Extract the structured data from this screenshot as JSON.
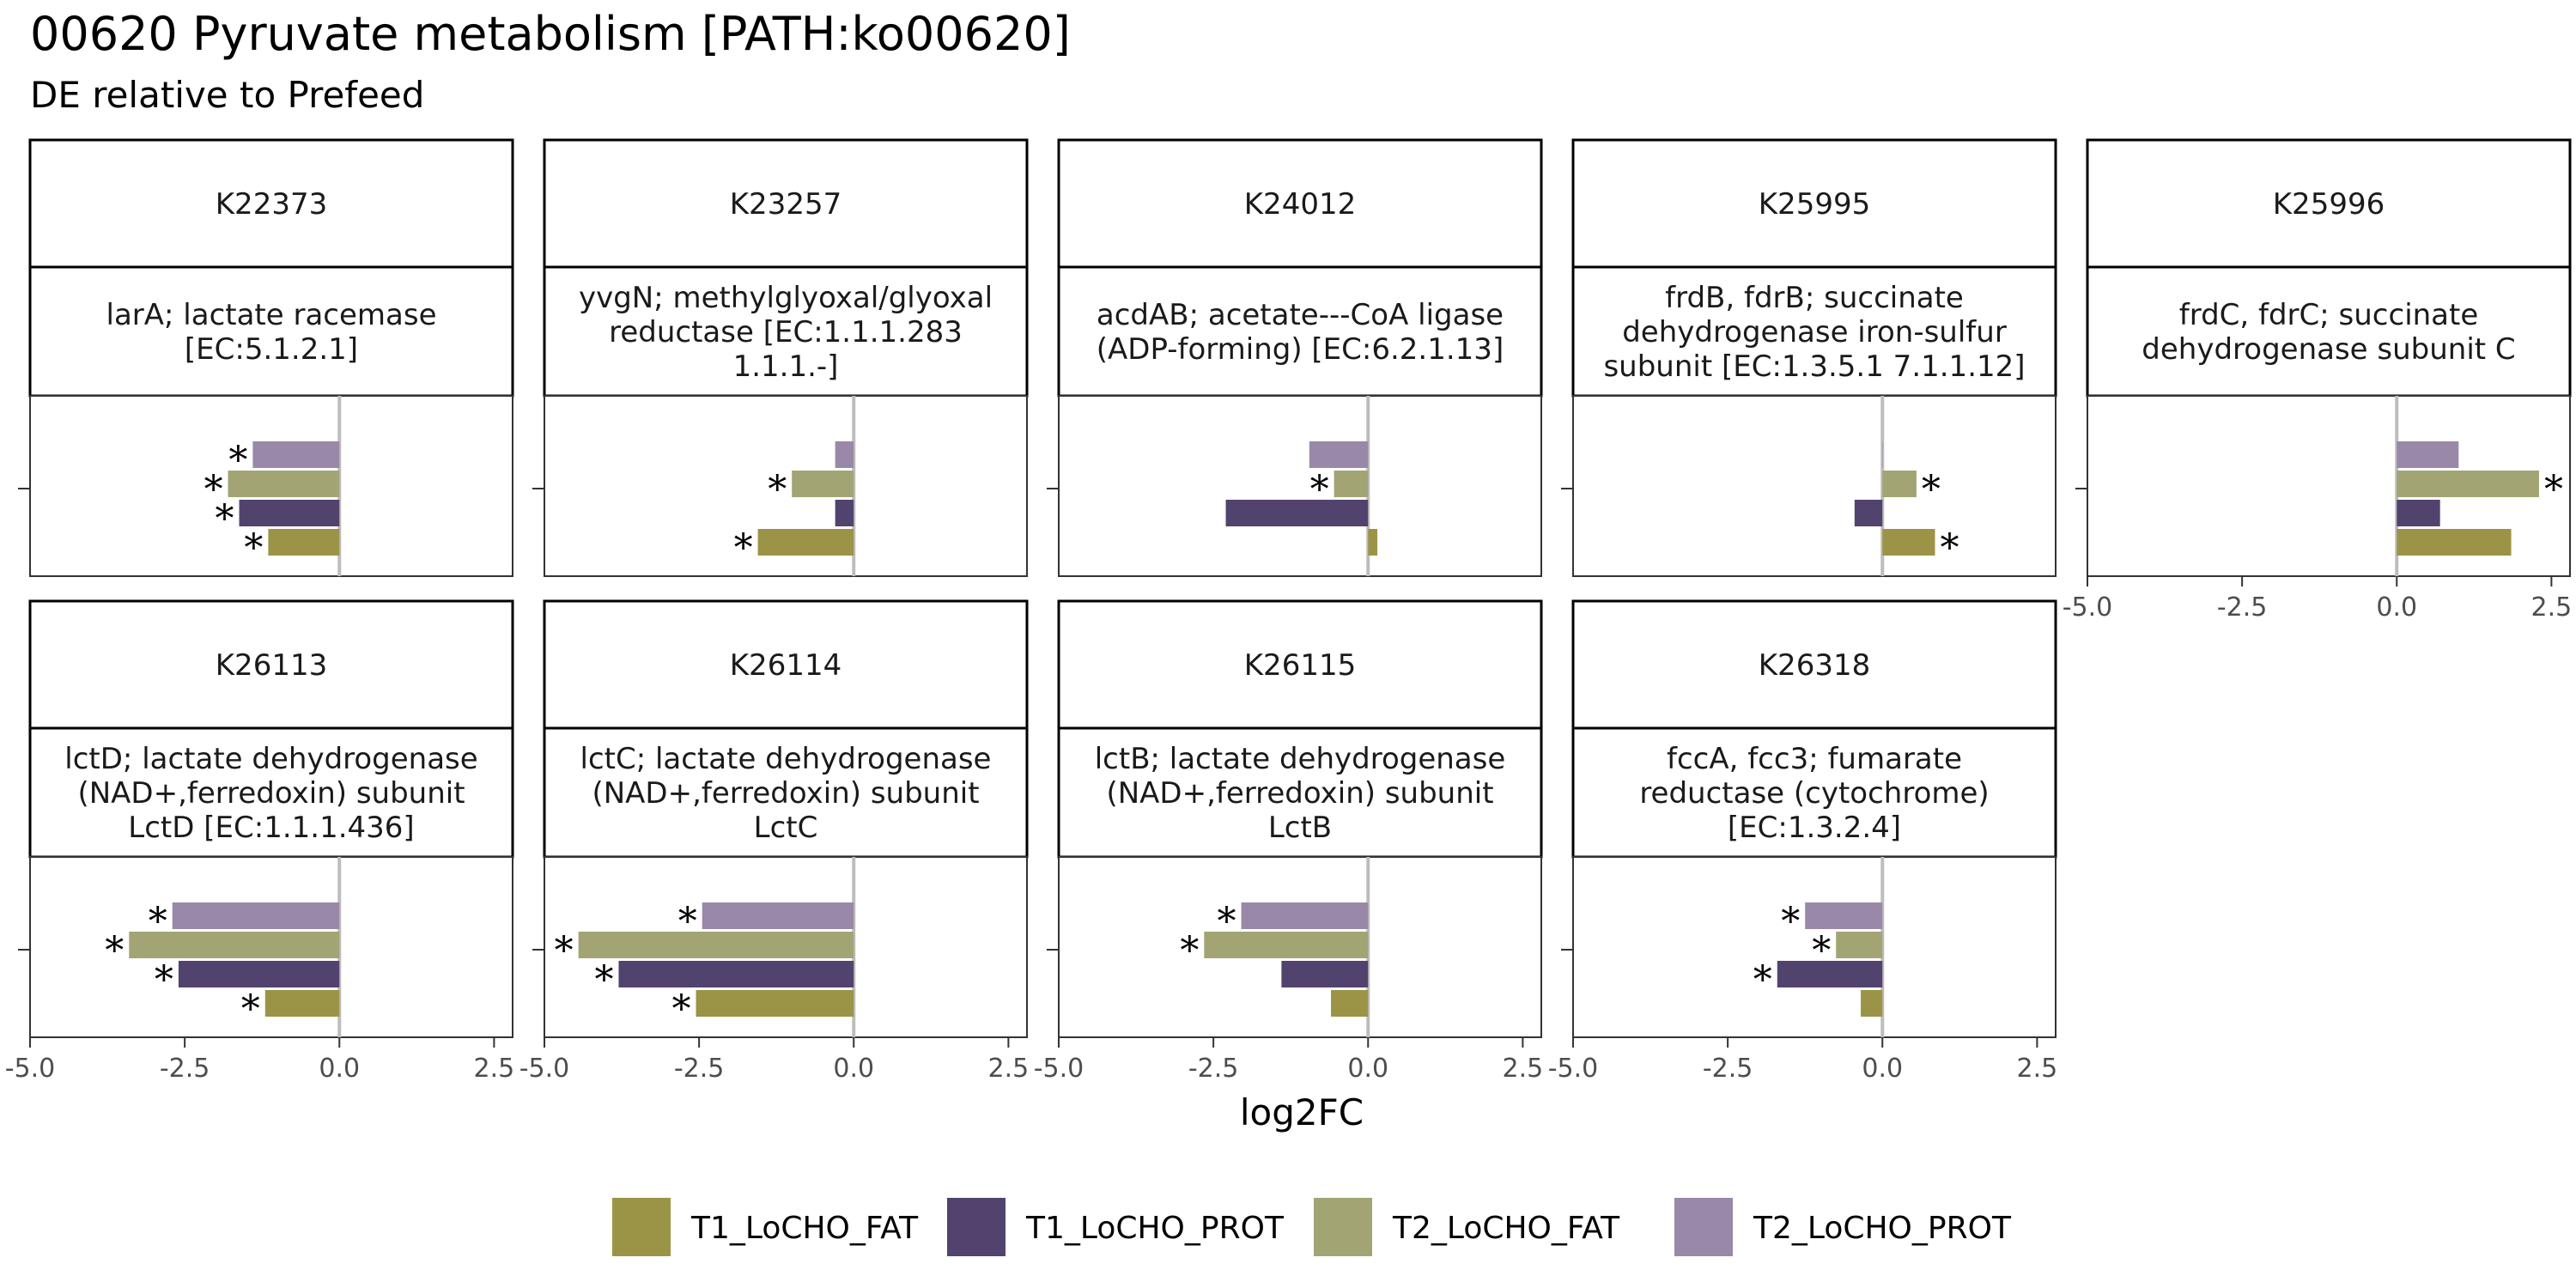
{
  "title": "00620 Pyruvate metabolism [PATH:ko00620]",
  "subtitle": "DE relative to Prefeed",
  "chart_data": {
    "type": "bar",
    "orientation": "horizontal",
    "xlabel": "log2FC",
    "ylabel": "",
    "xlim": [
      -5.0,
      2.8
    ],
    "x_ticks": [
      -5.0,
      -2.5,
      0.0,
      2.5
    ],
    "x_tick_labels": [
      "-5.0",
      "-2.5",
      "0.0",
      "2.5"
    ],
    "reference_line": 0,
    "legend_position": "bottom",
    "significance_marker": "*",
    "series": [
      {
        "name": "T1_LoCHO_FAT",
        "color": "#9b9447"
      },
      {
        "name": "T1_LoCHO_PROT",
        "color": "#52436e"
      },
      {
        "name": "T2_LoCHO_FAT",
        "color": "#a2a474"
      },
      {
        "name": "T2_LoCHO_PROT",
        "color": "#9a88a8"
      }
    ],
    "panels": [
      {
        "id": "K22373",
        "label": "larA; lactate racemase\n[EC:5.1.2.1]",
        "values": [
          -1.15,
          -1.62,
          -1.8,
          -1.4
        ],
        "significant": [
          true,
          true,
          true,
          true
        ]
      },
      {
        "id": "K23257",
        "label": "yvgN; methylglyoxal/glyoxal\nreductase [EC:1.1.1.283\n1.1.1.-]",
        "values": [
          -1.55,
          -0.3,
          -1.0,
          -0.3
        ],
        "significant": [
          true,
          false,
          true,
          false
        ]
      },
      {
        "id": "K24012",
        "label": "acdAB; acetate---CoA ligase\n(ADP-forming) [EC:6.2.1.13]",
        "values": [
          0.15,
          -2.3,
          -0.55,
          -0.95
        ],
        "significant": [
          false,
          false,
          true,
          false
        ]
      },
      {
        "id": "K25995",
        "label": "frdB, fdrB; succinate\ndehydrogenase iron-sulfur\nsubunit [EC:1.3.5.1 7.1.1.12]",
        "values": [
          0.85,
          -0.45,
          0.55,
          0.0
        ],
        "significant": [
          true,
          false,
          true,
          false
        ]
      },
      {
        "id": "K25996",
        "label": "frdC, fdrC; succinate\ndehydrogenase subunit C",
        "values": [
          1.85,
          0.7,
          2.3,
          1.0
        ],
        "significant": [
          false,
          false,
          true,
          false
        ]
      },
      {
        "id": "K26113",
        "label": "lctD; lactate dehydrogenase\n(NAD+,ferredoxin) subunit\nLctD [EC:1.1.1.436]",
        "values": [
          -1.2,
          -2.6,
          -3.4,
          -2.7
        ],
        "significant": [
          true,
          true,
          true,
          true
        ]
      },
      {
        "id": "K26114",
        "label": "lctC; lactate dehydrogenase\n(NAD+,ferredoxin) subunit\nLctC",
        "values": [
          -2.55,
          -3.8,
          -4.45,
          -2.45
        ],
        "significant": [
          true,
          true,
          true,
          true
        ]
      },
      {
        "id": "K26115",
        "label": "lctB; lactate dehydrogenase\n(NAD+,ferredoxin) subunit\nLctB",
        "values": [
          -0.6,
          -1.4,
          -2.65,
          -2.05
        ],
        "significant": [
          false,
          false,
          true,
          true
        ]
      },
      {
        "id": "K26318",
        "label": "fccA, fcc3; fumarate\nreductase (cytochrome)\n[EC:1.3.2.4]",
        "values": [
          -0.35,
          -1.7,
          -0.75,
          -1.25
        ],
        "significant": [
          false,
          true,
          true,
          true
        ]
      }
    ]
  }
}
